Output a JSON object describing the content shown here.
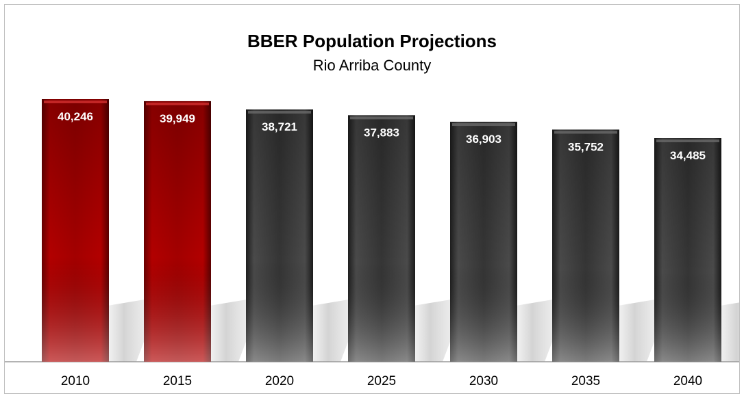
{
  "chart_data": {
    "type": "bar",
    "title": "BBER Population Projections",
    "subtitle": "Rio Arriba County",
    "categories": [
      "2010",
      "2015",
      "2020",
      "2025",
      "2030",
      "2035",
      "2040"
    ],
    "values": [
      40246,
      39949,
      38721,
      37883,
      36903,
      35752,
      34485
    ],
    "value_labels": [
      "40,246",
      "39,949",
      "38,721",
      "37,883",
      "36,903",
      "35,752",
      "34,485"
    ],
    "bar_colors": [
      "#a50000",
      "#a50000",
      "#3a3a3a",
      "#3a3a3a",
      "#3a3a3a",
      "#3a3a3a",
      "#3a3a3a"
    ],
    "ylim": [
      0,
      42000
    ],
    "grid": false,
    "legend": "none"
  }
}
